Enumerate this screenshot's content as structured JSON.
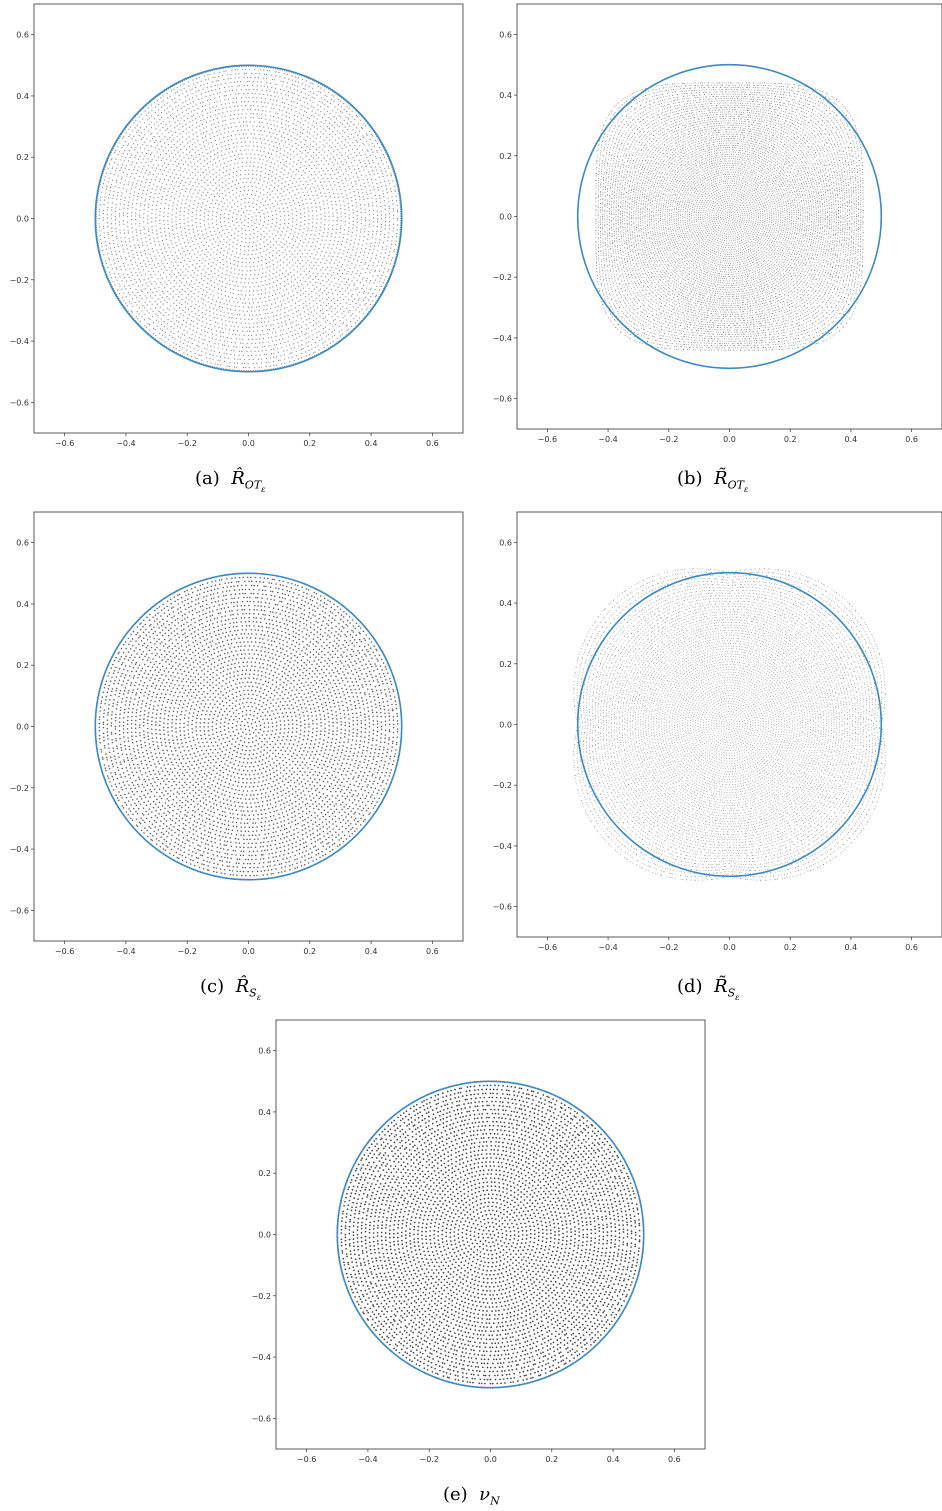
{
  "colors": {
    "circle": "#3b8bc2",
    "points": "#222222",
    "axis": "#333333"
  },
  "chart_data": [
    {
      "type": "scatter",
      "panel": "a",
      "caption": {
        "label": "(a)",
        "symbol": "R",
        "accent": "hat",
        "subscript": "OT",
        "sub_subscript": "ε"
      },
      "xlim": [
        -0.7,
        0.7
      ],
      "ylim": [
        -0.7,
        0.7
      ],
      "x_ticks": [
        "-0.6",
        "-0.4",
        "-0.2",
        "0.0",
        "0.2",
        "0.4",
        "0.6"
      ],
      "y_ticks": [
        "0.6",
        "0.4",
        "0.2",
        "0.0",
        "-0.2",
        "-0.4",
        "-0.6"
      ],
      "circle": {
        "cx": 0.0,
        "cy": 0.0,
        "r": 0.5
      },
      "points": {
        "distribution": "disk",
        "extent": 0.5,
        "rings": 38,
        "point_radius": 0.6,
        "opacity": 0.55,
        "boundary_dense": true
      }
    },
    {
      "type": "scatter",
      "panel": "b",
      "caption": {
        "label": "(b)",
        "symbol": "R",
        "accent": "tilde",
        "subscript": "OT",
        "sub_subscript": "ε"
      },
      "xlim": [
        -0.7,
        0.7
      ],
      "ylim": [
        -0.7,
        0.7
      ],
      "x_ticks": [
        "-0.6",
        "-0.4",
        "-0.2",
        "0.0",
        "0.2",
        "0.4",
        "0.6"
      ],
      "y_ticks": [
        "0.6",
        "0.4",
        "0.2",
        "0.0",
        "-0.2",
        "-0.4",
        "-0.6"
      ],
      "circle": {
        "cx": 0.0,
        "cy": 0.0,
        "r": 0.5
      },
      "points": {
        "distribution": "squircle",
        "extent": 0.44,
        "rings": 60,
        "point_radius": 0.45,
        "opacity": 0.6,
        "boundary_dense": false
      }
    },
    {
      "type": "scatter",
      "panel": "c",
      "caption": {
        "label": "(c)",
        "symbol": "R",
        "accent": "hat",
        "subscript": "S",
        "sub_subscript": "ε"
      },
      "xlim": [
        -0.7,
        0.7
      ],
      "ylim": [
        -0.7,
        0.7
      ],
      "x_ticks": [
        "-0.6",
        "-0.4",
        "-0.2",
        "0.0",
        "0.2",
        "0.4",
        "0.6"
      ],
      "y_ticks": [
        "0.6",
        "0.4",
        "0.2",
        "0.0",
        "-0.2",
        "-0.4",
        "-0.6"
      ],
      "circle": {
        "cx": 0.0,
        "cy": 0.0,
        "r": 0.5
      },
      "points": {
        "distribution": "disk",
        "extent": 0.5,
        "rings": 38,
        "point_radius": 0.75,
        "opacity": 0.75,
        "boundary_dense": false
      }
    },
    {
      "type": "scatter",
      "panel": "d",
      "caption": {
        "label": "(d)",
        "symbol": "R",
        "accent": "tilde",
        "subscript": "S",
        "sub_subscript": "ε"
      },
      "xlim": [
        -0.7,
        0.7
      ],
      "ylim": [
        -0.7,
        0.7
      ],
      "x_ticks": [
        "-0.6",
        "-0.4",
        "-0.2",
        "0.0",
        "0.2",
        "0.4",
        "0.6"
      ],
      "y_ticks": [
        "0.6",
        "0.4",
        "0.2",
        "0.0",
        "-0.2",
        "-0.4",
        "-0.6"
      ],
      "circle": {
        "cx": 0.0,
        "cy": 0.0,
        "r": 0.5
      },
      "points": {
        "distribution": "disk_flared",
        "extent": 0.5,
        "rings": 58,
        "point_radius": 0.45,
        "opacity": 0.5,
        "boundary_dense": false
      }
    },
    {
      "type": "scatter",
      "panel": "e",
      "caption": {
        "label": "(e)",
        "symbol": "ν",
        "accent": "none",
        "subscript": "N",
        "sub_subscript": ""
      },
      "xlim": [
        -0.7,
        0.7
      ],
      "ylim": [
        -0.7,
        0.7
      ],
      "x_ticks": [
        "-0.6",
        "-0.4",
        "-0.2",
        "0.0",
        "0.2",
        "0.4",
        "0.6"
      ],
      "y_ticks": [
        "0.6",
        "0.4",
        "0.2",
        "0.0",
        "-0.2",
        "-0.4",
        "-0.6"
      ],
      "circle": {
        "cx": 0.0,
        "cy": 0.0,
        "r": 0.5
      },
      "points": {
        "distribution": "disk",
        "extent": 0.5,
        "rings": 38,
        "point_radius": 0.85,
        "opacity": 0.85,
        "boundary_dense": false
      }
    }
  ]
}
